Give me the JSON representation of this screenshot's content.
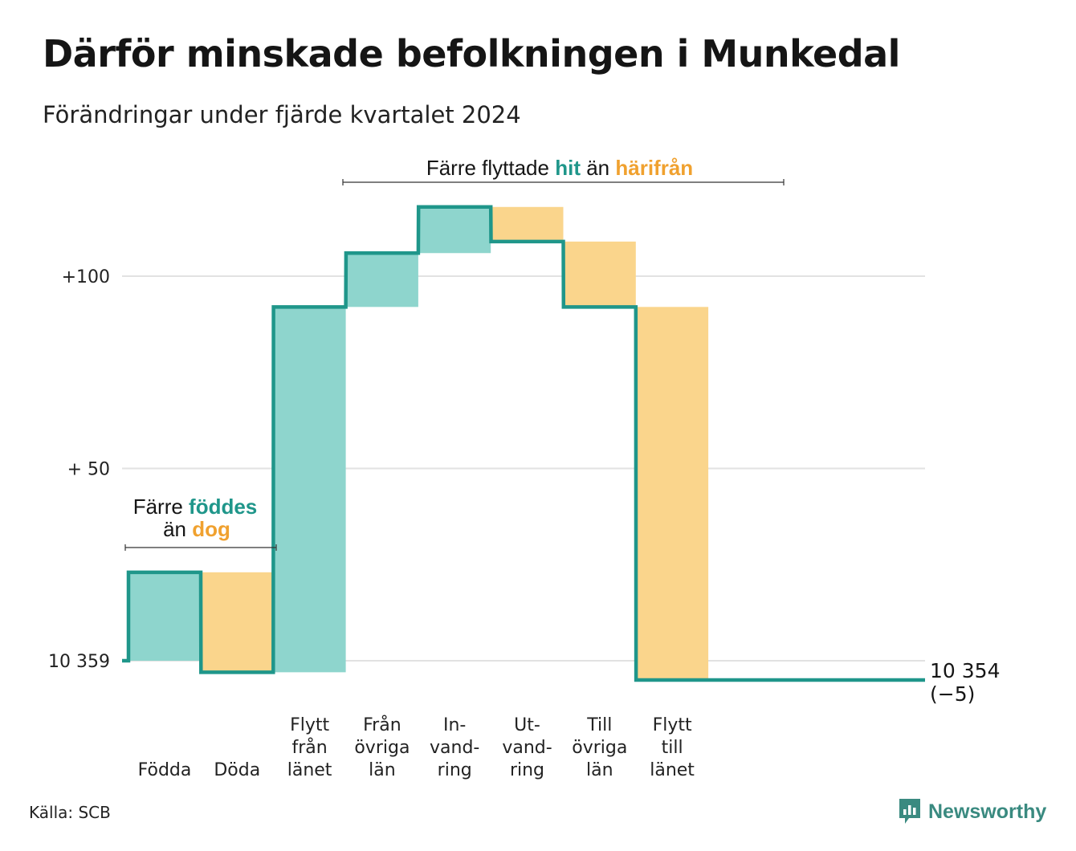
{
  "title": "Därför minskade befolkningen i Munkedal",
  "subtitle": "Förändringar under fjärde kvartalet 2024",
  "source": "Källa: SCB",
  "brand": "Newsworthy",
  "colors": {
    "in": "#8ed5cd",
    "out": "#fad58c",
    "line": "#1f968a",
    "accent_in": "#1f968a",
    "accent_out": "#f0a12f",
    "grid": "#e2e2e2"
  },
  "annotations": {
    "births_deaths": {
      "line1_prefix": "Färre ",
      "line1_highlight": "föddes",
      "line2_prefix": "än ",
      "line2_highlight": "dog"
    },
    "migration": {
      "prefix": "Färre flyttade ",
      "highlight_in": "hit",
      "middle": " än ",
      "highlight_out": "härifrån"
    }
  },
  "chart_data": {
    "type": "waterfall",
    "baseline": 10359,
    "y_ticks": [
      {
        "value": 0,
        "label": "10 359"
      },
      {
        "value": 50,
        "label": "+ 50"
      },
      {
        "value": 100,
        "label": "+100"
      }
    ],
    "ylim": [
      -10,
      143
    ],
    "steps": [
      {
        "label": [
          "Födda"
        ],
        "value": 23,
        "kind": "in"
      },
      {
        "label": [
          "Döda"
        ],
        "value": -26,
        "kind": "out"
      },
      {
        "label": [
          "Flytt",
          "från",
          "länet"
        ],
        "value": 95,
        "kind": "in"
      },
      {
        "label": [
          "Från",
          "övriga",
          "län"
        ],
        "value": 14,
        "kind": "in"
      },
      {
        "label": [
          "In-",
          "vand-",
          "ring"
        ],
        "value": 12,
        "kind": "in"
      },
      {
        "label": [
          "Ut-",
          "vand-",
          "ring"
        ],
        "value": -9,
        "kind": "out"
      },
      {
        "label": [
          "Till",
          "övriga",
          "län"
        ],
        "value": -17,
        "kind": "out"
      },
      {
        "label": [
          "Flytt",
          "till",
          "länet"
        ],
        "value": -97,
        "kind": "out"
      }
    ],
    "final": {
      "value_label": "10 354",
      "change_label": "(−5)"
    }
  }
}
